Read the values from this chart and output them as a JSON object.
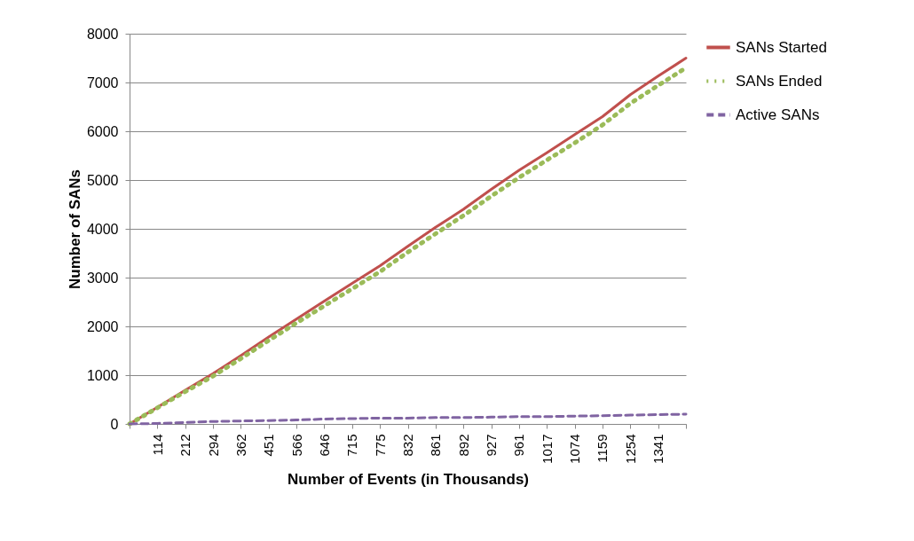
{
  "chart_data": {
    "type": "line",
    "xlabel": "Number of Events (in Thousands)",
    "ylabel": "Number of SANs",
    "categories": [
      null,
      "114",
      "212",
      "294",
      "362",
      "451",
      "566",
      "646",
      "715",
      "775",
      "832",
      "861",
      "892",
      "927",
      "961",
      "1017",
      "1074",
      "1159",
      "1254",
      "1341",
      null
    ],
    "series": [
      {
        "name": "SANs Started",
        "color": "#c0504d",
        "line_style": "solid",
        "values": [
          0,
          340,
          690,
          1030,
          1400,
          1780,
          2150,
          2520,
          2880,
          3240,
          3640,
          4030,
          4400,
          4810,
          5200,
          5560,
          5930,
          6300,
          6750,
          7130,
          7500
        ]
      },
      {
        "name": "SANs Ended",
        "color": "#9bbb59",
        "line_style": "dotted",
        "values": [
          0,
          330,
          660,
          980,
          1340,
          1710,
          2070,
          2420,
          2770,
          3120,
          3520,
          3900,
          4270,
          4670,
          5050,
          5410,
          5760,
          6130,
          6570,
          6940,
          7300
        ]
      },
      {
        "name": "Active SANs",
        "color": "#8064a2",
        "line_style": "dashed",
        "values": [
          0,
          10,
          30,
          50,
          60,
          70,
          80,
          100,
          110,
          120,
          120,
          130,
          130,
          140,
          150,
          150,
          160,
          170,
          180,
          190,
          200
        ]
      }
    ],
    "ylim": [
      0,
      8000
    ],
    "yticks": [
      0,
      1000,
      2000,
      3000,
      4000,
      5000,
      6000,
      7000,
      8000
    ],
    "grid": "y",
    "legend": "right",
    "marker": "none"
  }
}
